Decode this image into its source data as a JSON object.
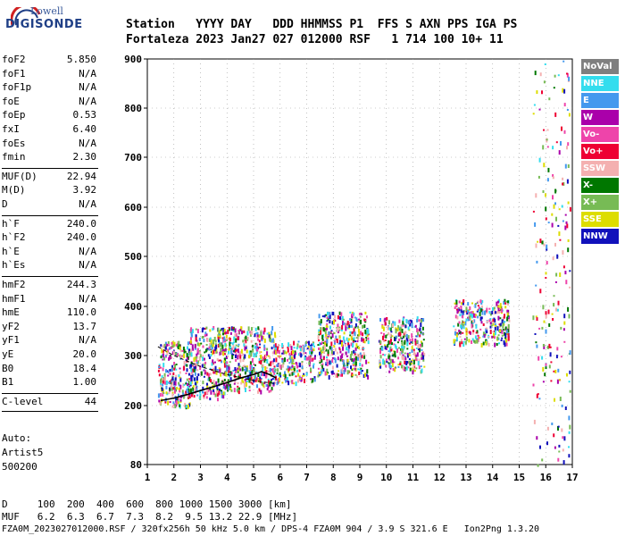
{
  "logo": {
    "brand_top": "Lowell",
    "brand_main": "DIGISONDE"
  },
  "header": {
    "line1": "Station   YYYY DAY   DDD HHMMSS P1  FFS S AXN PPS IGA PS",
    "line2": "Fortaleza 2023 Jan27 027 012000 RSF   1 714 100 10+ 11"
  },
  "params": [
    {
      "k": "foF2",
      "v": "5.850"
    },
    {
      "k": "foF1",
      "v": "N/A"
    },
    {
      "k": "foF1p",
      "v": "N/A"
    },
    {
      "k": "foE",
      "v": "N/A"
    },
    {
      "k": "foEp",
      "v": "0.53"
    },
    {
      "k": "fxI",
      "v": "6.40"
    },
    {
      "k": "foEs",
      "v": "N/A"
    },
    {
      "k": "fmin",
      "v": "2.30"
    },
    {
      "k": "MUF(D)",
      "v": "22.94"
    },
    {
      "k": "M(D)",
      "v": "3.92"
    },
    {
      "k": "D",
      "v": "N/A"
    },
    {
      "k": "h`F",
      "v": "240.0"
    },
    {
      "k": "h`F2",
      "v": "240.0"
    },
    {
      "k": "h`E",
      "v": "N/A"
    },
    {
      "k": "h`Es",
      "v": "N/A"
    },
    {
      "k": "hmF2",
      "v": "244.3"
    },
    {
      "k": "hmF1",
      "v": "N/A"
    },
    {
      "k": "hmE",
      "v": "110.0"
    },
    {
      "k": "yF2",
      "v": "13.7"
    },
    {
      "k": "yF1",
      "v": "N/A"
    },
    {
      "k": "yE",
      "v": "20.0"
    },
    {
      "k": "B0",
      "v": "18.4"
    },
    {
      "k": "B1",
      "v": "1.00"
    },
    {
      "k": "C-level",
      "v": "44"
    }
  ],
  "auto": {
    "line1": "Auto:",
    "line2": "Artist5",
    "line3": "500200"
  },
  "legend": [
    {
      "label": "NoVal",
      "color": "#7f7f7f"
    },
    {
      "label": "NNE",
      "color": "#33ddee"
    },
    {
      "label": "E",
      "color": "#4499ee"
    },
    {
      "label": "W",
      "color": "#aa00aa"
    },
    {
      "label": "Vo-",
      "color": "#ee44aa"
    },
    {
      "label": "Vo+",
      "color": "#ee0033"
    },
    {
      "label": "SSW",
      "color": "#f4b0b0"
    },
    {
      "label": "X-",
      "color": "#007700"
    },
    {
      "label": "X+",
      "color": "#77bb55"
    },
    {
      "label": "SSE",
      "color": "#dddd00"
    },
    {
      "label": "NNW",
      "color": "#1111bb"
    }
  ],
  "chart_data": {
    "type": "scatter",
    "title": "",
    "xlabel": "",
    "ylabel": "",
    "xlim": [
      1,
      17
    ],
    "ylim": [
      80,
      900
    ],
    "x_ticks": [
      "1",
      "2",
      "3",
      "4",
      "5",
      "6",
      "7",
      "8",
      "9",
      "10",
      "11",
      "12",
      "13",
      "14",
      "15",
      "16",
      "17"
    ],
    "y_ticks": [
      "80",
      "200",
      "300",
      "400",
      "500",
      "600",
      "700",
      "800",
      "900"
    ],
    "y_tick_values": [
      80,
      200,
      300,
      400,
      500,
      600,
      700,
      800,
      900
    ],
    "y_scale": "nonlinear (ionogram height axis)",
    "grid": "dotted",
    "trace_profile": {
      "name": "",
      "x": [
        1.5,
        2.0,
        2.5,
        3.0,
        3.5,
        4.0,
        4.5,
        5.0,
        5.3,
        5.6,
        5.85
      ],
      "y": [
        210,
        215,
        222,
        230,
        238,
        246,
        255,
        262,
        268,
        262,
        255
      ]
    },
    "dashed_profile": {
      "x": [
        1.4,
        2.0,
        3.0,
        4.0,
        5.0,
        5.8
      ],
      "y": [
        318,
        300,
        278,
        262,
        250,
        244
      ]
    },
    "echo_clusters": [
      {
        "x_range": [
          1.4,
          2.6
        ],
        "y_range": [
          200,
          330
        ]
      },
      {
        "x_range": [
          2.6,
          3.9
        ],
        "y_range": [
          215,
          330
        ]
      },
      {
        "x_range": [
          2.6,
          5.8
        ],
        "y_range": [
          330,
          360
        ]
      },
      {
        "x_range": [
          3.9,
          5.8
        ],
        "y_range": [
          230,
          330
        ]
      },
      {
        "x_range": [
          5.8,
          7.3
        ],
        "y_range": [
          245,
          330
        ]
      },
      {
        "x_range": [
          7.4,
          9.3
        ],
        "y_range": [
          260,
          390
        ]
      },
      {
        "x_range": [
          9.7,
          11.4
        ],
        "y_range": [
          270,
          380
        ]
      },
      {
        "x_range": [
          12.5,
          14.6
        ],
        "y_range": [
          325,
          415
        ]
      },
      {
        "x_range": [
          15.5,
          16.9
        ],
        "y_range": [
          80,
          900
        ]
      }
    ]
  },
  "footer": {
    "line1": "D     100  200  400  600  800 1000 1500 3000 [km]",
    "line2": "MUF   6.2  6.3  6.7  7.3  8.2  9.5 13.2 22.9 [MHz]",
    "line3": "FZA0M_2023027012000.RSF / 320fx256h 50 kHz 5.0 km / DPS-4 FZA0M 904 / 3.9 S 321.6 E   Ion2Png 1.3.20"
  }
}
